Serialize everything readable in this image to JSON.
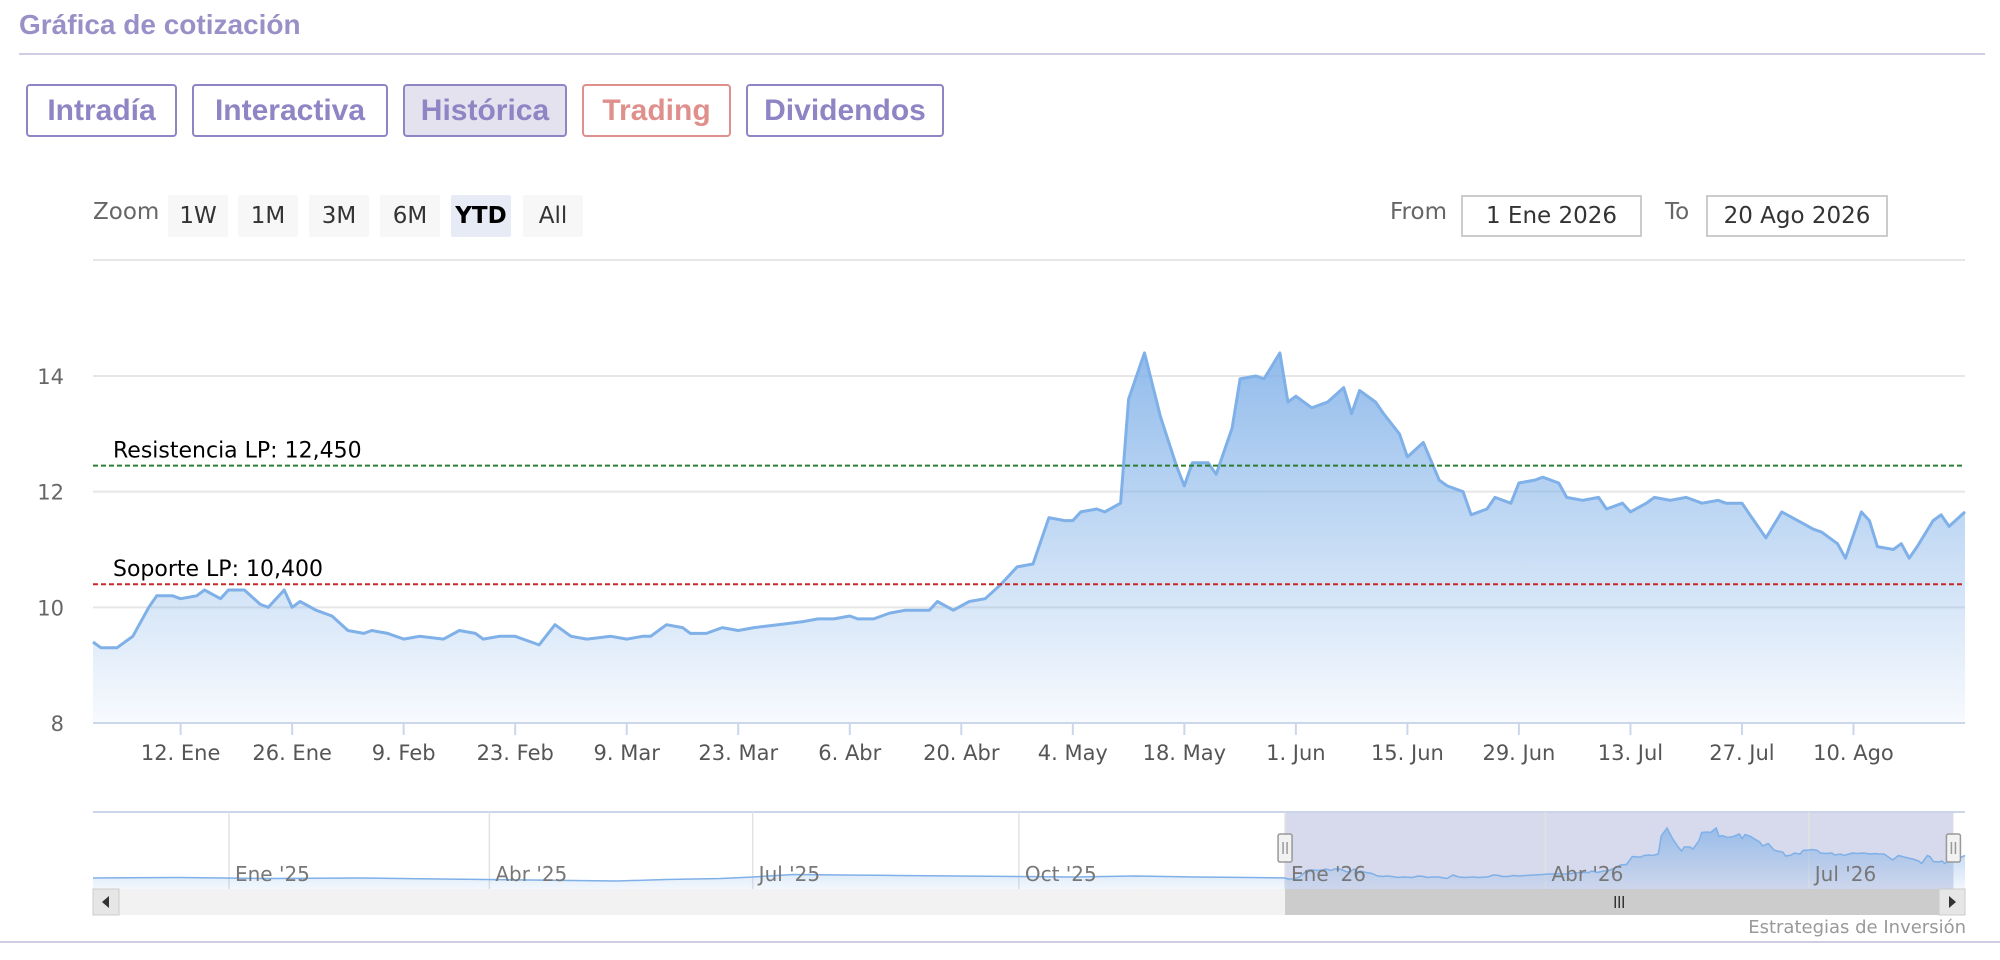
{
  "header": {
    "title": "Gráfica de cotización"
  },
  "tabs": [
    {
      "label": "Intradía"
    },
    {
      "label": "Interactiva"
    },
    {
      "label": "Histórica"
    },
    {
      "label": "Trading"
    },
    {
      "label": "Dividendos"
    }
  ],
  "active_tab": "Histórica",
  "zoom": {
    "label": "Zoom",
    "buttons": [
      "1W",
      "1M",
      "3M",
      "6M",
      "YTD",
      "All"
    ],
    "active": "YTD"
  },
  "range": {
    "from_label": "From",
    "from_value": "1 Ene 2026",
    "to_label": "To",
    "to_value": "20 Ago 2026"
  },
  "credits": "Estrategias de Inversión",
  "colors": {
    "accent": "#8f84c4",
    "trading": "#e0908c",
    "series": "#7fb0e8",
    "resistance": "#2e7d32",
    "support": "#c62828"
  },
  "chart_data": {
    "type": "area",
    "x_start": "2026-01-01",
    "x_end": "2026-08-20",
    "y_ticks": [
      8,
      10,
      12,
      14
    ],
    "ylim": [
      8,
      15
    ],
    "x_ticks": [
      {
        "label": "12. Ene",
        "date": "2026-01-12"
      },
      {
        "label": "26. Ene",
        "date": "2026-01-26"
      },
      {
        "label": "9. Feb",
        "date": "2026-02-09"
      },
      {
        "label": "23. Feb",
        "date": "2026-02-23"
      },
      {
        "label": "9. Mar",
        "date": "2026-03-09"
      },
      {
        "label": "23. Mar",
        "date": "2026-03-23"
      },
      {
        "label": "6. Abr",
        "date": "2026-04-06"
      },
      {
        "label": "20. Abr",
        "date": "2026-04-20"
      },
      {
        "label": "4. May",
        "date": "2026-05-04"
      },
      {
        "label": "18. May",
        "date": "2026-05-18"
      },
      {
        "label": "1. Jun",
        "date": "2026-06-01"
      },
      {
        "label": "15. Jun",
        "date": "2026-06-15"
      },
      {
        "label": "29. Jun",
        "date": "2026-06-29"
      },
      {
        "label": "13. Jul",
        "date": "2026-07-13"
      },
      {
        "label": "27. Jul",
        "date": "2026-07-27"
      },
      {
        "label": "10. Ago",
        "date": "2026-08-10"
      }
    ],
    "plot_lines": [
      {
        "label": "Resistencia LP: 12,450",
        "value": 12.45,
        "color": "#2e7d32"
      },
      {
        "label": "Soporte LP: 10,400",
        "value": 10.4,
        "color": "#c62828"
      }
    ],
    "series": [
      {
        "points": [
          [
            "2026-01-01",
            9.4
          ],
          [
            "2026-01-02",
            9.3
          ],
          [
            "2026-01-04",
            9.3
          ],
          [
            "2026-01-06",
            9.5
          ],
          [
            "2026-01-08",
            10.0
          ],
          [
            "2026-01-09",
            10.2
          ],
          [
            "2026-01-11",
            10.2
          ],
          [
            "2026-01-12",
            10.15
          ],
          [
            "2026-01-14",
            10.2
          ],
          [
            "2026-01-15",
            10.3
          ],
          [
            "2026-01-17",
            10.15
          ],
          [
            "2026-01-18",
            10.3
          ],
          [
            "2026-01-20",
            10.3
          ],
          [
            "2026-01-22",
            10.05
          ],
          [
            "2026-01-23",
            10.0
          ],
          [
            "2026-01-25",
            10.3
          ],
          [
            "2026-01-26",
            10.0
          ],
          [
            "2026-01-27",
            10.1
          ],
          [
            "2026-01-29",
            9.95
          ],
          [
            "2026-01-31",
            9.85
          ],
          [
            "2026-02-02",
            9.6
          ],
          [
            "2026-02-04",
            9.55
          ],
          [
            "2026-02-05",
            9.6
          ],
          [
            "2026-02-07",
            9.55
          ],
          [
            "2026-02-09",
            9.45
          ],
          [
            "2026-02-11",
            9.5
          ],
          [
            "2026-02-14",
            9.45
          ],
          [
            "2026-02-16",
            9.6
          ],
          [
            "2026-02-18",
            9.55
          ],
          [
            "2026-02-19",
            9.45
          ],
          [
            "2026-02-21",
            9.5
          ],
          [
            "2026-02-23",
            9.5
          ],
          [
            "2026-02-25",
            9.4
          ],
          [
            "2026-02-26",
            9.35
          ],
          [
            "2026-02-28",
            9.7
          ],
          [
            "2026-03-02",
            9.5
          ],
          [
            "2026-03-04",
            9.45
          ],
          [
            "2026-03-07",
            9.5
          ],
          [
            "2026-03-09",
            9.45
          ],
          [
            "2026-03-11",
            9.5
          ],
          [
            "2026-03-12",
            9.5
          ],
          [
            "2026-03-14",
            9.7
          ],
          [
            "2026-03-16",
            9.65
          ],
          [
            "2026-03-17",
            9.55
          ],
          [
            "2026-03-19",
            9.55
          ],
          [
            "2026-03-21",
            9.65
          ],
          [
            "2026-03-23",
            9.6
          ],
          [
            "2026-03-25",
            9.65
          ],
          [
            "2026-03-28",
            9.7
          ],
          [
            "2026-03-31",
            9.75
          ],
          [
            "2026-04-02",
            9.8
          ],
          [
            "2026-04-04",
            9.8
          ],
          [
            "2026-04-06",
            9.85
          ],
          [
            "2026-04-07",
            9.8
          ],
          [
            "2026-04-09",
            9.8
          ],
          [
            "2026-04-11",
            9.9
          ],
          [
            "2026-04-13",
            9.95
          ],
          [
            "2026-04-16",
            9.95
          ],
          [
            "2026-04-17",
            10.1
          ],
          [
            "2026-04-19",
            9.95
          ],
          [
            "2026-04-21",
            10.1
          ],
          [
            "2026-04-23",
            10.15
          ],
          [
            "2026-04-25",
            10.4
          ],
          [
            "2026-04-27",
            10.7
          ],
          [
            "2026-04-29",
            10.75
          ],
          [
            "2026-05-01",
            11.55
          ],
          [
            "2026-05-03",
            11.5
          ],
          [
            "2026-05-04",
            11.5
          ],
          [
            "2026-05-05",
            11.65
          ],
          [
            "2026-05-07",
            11.7
          ],
          [
            "2026-05-08",
            11.65
          ],
          [
            "2026-05-10",
            11.8
          ],
          [
            "2026-05-11",
            13.6
          ],
          [
            "2026-05-13",
            14.4
          ],
          [
            "2026-05-15",
            13.3
          ],
          [
            "2026-05-17",
            12.45
          ],
          [
            "2026-05-18",
            12.1
          ],
          [
            "2026-05-19",
            12.5
          ],
          [
            "2026-05-21",
            12.5
          ],
          [
            "2026-05-22",
            12.3
          ],
          [
            "2026-05-24",
            13.1
          ],
          [
            "2026-05-25",
            13.95
          ],
          [
            "2026-05-27",
            14.0
          ],
          [
            "2026-05-28",
            13.95
          ],
          [
            "2026-05-30",
            14.4
          ],
          [
            "2026-05-31",
            13.55
          ],
          [
            "2026-06-01",
            13.65
          ],
          [
            "2026-06-03",
            13.45
          ],
          [
            "2026-06-05",
            13.55
          ],
          [
            "2026-06-07",
            13.8
          ],
          [
            "2026-06-08",
            13.35
          ],
          [
            "2026-06-09",
            13.75
          ],
          [
            "2026-06-11",
            13.55
          ],
          [
            "2026-06-12",
            13.35
          ],
          [
            "2026-06-14",
            13.0
          ],
          [
            "2026-06-15",
            12.6
          ],
          [
            "2026-06-17",
            12.85
          ],
          [
            "2026-06-19",
            12.2
          ],
          [
            "2026-06-20",
            12.1
          ],
          [
            "2026-06-22",
            12.0
          ],
          [
            "2026-06-23",
            11.6
          ],
          [
            "2026-06-25",
            11.7
          ],
          [
            "2026-06-26",
            11.9
          ],
          [
            "2026-06-28",
            11.8
          ],
          [
            "2026-06-29",
            12.15
          ],
          [
            "2026-07-01",
            12.2
          ],
          [
            "2026-07-02",
            12.25
          ],
          [
            "2026-07-04",
            12.15
          ],
          [
            "2026-07-05",
            11.9
          ],
          [
            "2026-07-07",
            11.85
          ],
          [
            "2026-07-09",
            11.9
          ],
          [
            "2026-07-10",
            11.7
          ],
          [
            "2026-07-12",
            11.8
          ],
          [
            "2026-07-13",
            11.65
          ],
          [
            "2026-07-15",
            11.8
          ],
          [
            "2026-07-16",
            11.9
          ],
          [
            "2026-07-18",
            11.85
          ],
          [
            "2026-07-20",
            11.9
          ],
          [
            "2026-07-22",
            11.8
          ],
          [
            "2026-07-24",
            11.85
          ],
          [
            "2026-07-25",
            11.8
          ],
          [
            "2026-07-27",
            11.8
          ],
          [
            "2026-07-28",
            11.6
          ],
          [
            "2026-07-30",
            11.2
          ],
          [
            "2026-08-01",
            11.65
          ],
          [
            "2026-08-03",
            11.5
          ],
          [
            "2026-08-05",
            11.35
          ],
          [
            "2026-08-06",
            11.3
          ],
          [
            "2026-08-08",
            11.1
          ],
          [
            "2026-08-09",
            10.85
          ],
          [
            "2026-08-11",
            11.65
          ],
          [
            "2026-08-12",
            11.5
          ],
          [
            "2026-08-13",
            11.05
          ],
          [
            "2026-08-15",
            11.0
          ],
          [
            "2026-08-16",
            11.1
          ],
          [
            "2026-08-17",
            10.85
          ],
          [
            "2026-08-18",
            11.05
          ],
          [
            "2026-08-20",
            11.5
          ],
          [
            "2026-08-21",
            11.6
          ],
          [
            "2026-08-22",
            11.4
          ],
          [
            "2026-08-24",
            11.65
          ]
        ]
      }
    ],
    "navigator": {
      "labels": [
        "Ene '25",
        "Abr '25",
        "Jul '25",
        "Oct '25",
        "Ene '26",
        "Abr '26",
        "Jul '26"
      ],
      "range_dates": [
        "2024-11-15",
        "2026-08-24"
      ],
      "label_dates": [
        "2025-01-01",
        "2025-04-01",
        "2025-07-01",
        "2025-10-01",
        "2026-01-01",
        "2026-04-01",
        "2026-07-01"
      ],
      "selected": [
        "2026-01-01",
        "2026-08-20"
      ],
      "history": [
        [
          "2024-11-15",
          9.4
        ],
        [
          "2024-12-15",
          9.45
        ],
        [
          "2025-01-15",
          9.35
        ],
        [
          "2025-02-15",
          9.4
        ],
        [
          "2025-03-15",
          9.3
        ],
        [
          "2025-04-15",
          9.2
        ],
        [
          "2025-05-15",
          9.1
        ],
        [
          "2025-06-01",
          9.25
        ],
        [
          "2025-06-20",
          9.35
        ],
        [
          "2025-07-01",
          9.5
        ],
        [
          "2025-07-15",
          9.75
        ],
        [
          "2025-08-01",
          9.7
        ],
        [
          "2025-08-20",
          9.65
        ],
        [
          "2025-09-10",
          9.6
        ],
        [
          "2025-10-01",
          9.55
        ],
        [
          "2025-10-20",
          9.5
        ],
        [
          "2025-11-10",
          9.6
        ],
        [
          "2025-12-01",
          9.5
        ],
        [
          "2025-12-20",
          9.45
        ]
      ]
    }
  }
}
